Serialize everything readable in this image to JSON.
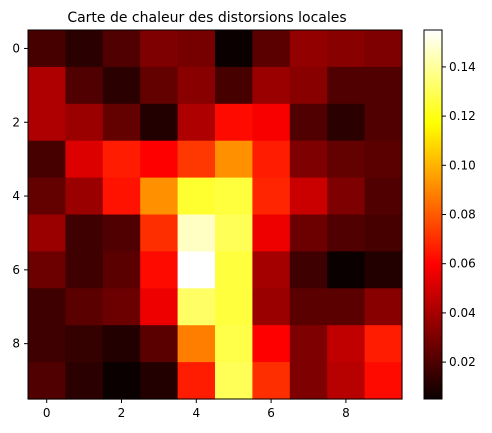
{
  "chart_data": {
    "type": "heatmap",
    "title": "Carte de chaleur des distorsions locales",
    "xlabel": "",
    "ylabel": "",
    "colormap": "hot",
    "x_ticks": [
      "0",
      "2",
      "4",
      "6",
      "8"
    ],
    "y_ticks": [
      "0",
      "2",
      "4",
      "6",
      "8"
    ],
    "colorbar": {
      "range": [
        0.005,
        0.155
      ],
      "ticks": [
        "0.02",
        "0.04",
        "0.06",
        "0.08",
        "0.10",
        "0.12",
        "0.14"
      ]
    },
    "values": [
      [
        0.018,
        0.012,
        0.02,
        0.03,
        0.028,
        0.005,
        0.022,
        0.034,
        0.032,
        0.03
      ],
      [
        0.04,
        0.02,
        0.012,
        0.024,
        0.032,
        0.018,
        0.036,
        0.032,
        0.02,
        0.02
      ],
      [
        0.04,
        0.036,
        0.024,
        0.01,
        0.04,
        0.062,
        0.056,
        0.02,
        0.012,
        0.02
      ],
      [
        0.018,
        0.05,
        0.066,
        0.058,
        0.072,
        0.092,
        0.066,
        0.03,
        0.024,
        0.022
      ],
      [
        0.024,
        0.036,
        0.064,
        0.092,
        0.124,
        0.126,
        0.068,
        0.046,
        0.03,
        0.02
      ],
      [
        0.036,
        0.016,
        0.02,
        0.07,
        0.146,
        0.13,
        0.054,
        0.026,
        0.02,
        0.018
      ],
      [
        0.026,
        0.016,
        0.022,
        0.062,
        0.155,
        0.126,
        0.038,
        0.016,
        0.005,
        0.01
      ],
      [
        0.016,
        0.022,
        0.026,
        0.054,
        0.132,
        0.126,
        0.036,
        0.022,
        0.022,
        0.032
      ],
      [
        0.016,
        0.014,
        0.01,
        0.022,
        0.088,
        0.128,
        0.058,
        0.03,
        0.044,
        0.066
      ],
      [
        0.02,
        0.012,
        0.005,
        0.01,
        0.066,
        0.13,
        0.07,
        0.03,
        0.042,
        0.062
      ]
    ]
  }
}
